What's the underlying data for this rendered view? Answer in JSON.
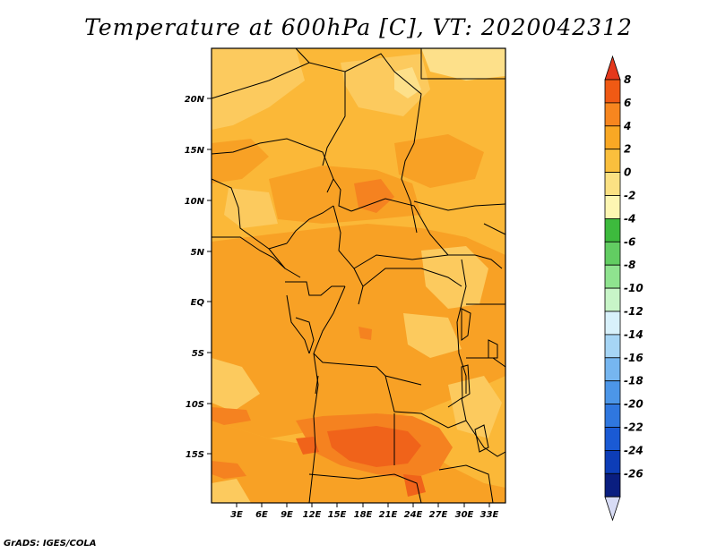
{
  "title": "Temperature at 600hPa [C], VT: 2020042312",
  "credit": "GrADS: IGES/COLA",
  "map": {
    "lat_ticks": [
      "20N",
      "15N",
      "10N",
      "5N",
      "EQ",
      "5S",
      "10S",
      "15S"
    ],
    "lon_ticks": [
      "3E",
      "6E",
      "9E",
      "12E",
      "15E",
      "18E",
      "21E",
      "24E",
      "27E",
      "30E",
      "33E"
    ]
  },
  "colorbar": {
    "labels": [
      "8",
      "6",
      "4",
      "2",
      "0",
      "-2",
      "-4",
      "-6",
      "-8",
      "-10",
      "-12",
      "-14",
      "-16",
      "-18",
      "-20",
      "-22",
      "-24",
      "-26"
    ],
    "colors": [
      "#e4381c",
      "#f05a14",
      "#f7861f",
      "#f9a824",
      "#fabf3d",
      "#fbe183",
      "#fdf6b2",
      "#3dba3d",
      "#62cd62",
      "#8fe38f",
      "#c8f5c8",
      "#d8f1fb",
      "#a6d5f5",
      "#76b6f0",
      "#4c96e8",
      "#2f77df",
      "#1a5ad4",
      "#0d3db7",
      "#0a1e80"
    ],
    "bottom_color": "#d8dcf5"
  },
  "field_colors": {
    "base": "#fbb838",
    "warm": "#f8a125",
    "warmer": "#f58220",
    "hot": "#f0631a",
    "cool": "#fcca5e",
    "cooler": "#fde08a"
  }
}
